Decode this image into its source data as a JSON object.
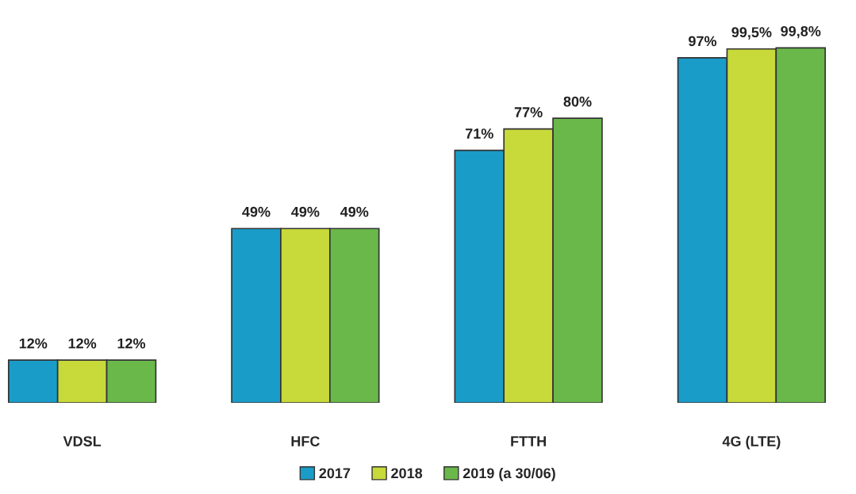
{
  "chart_data": {
    "type": "bar",
    "categories": [
      "VDSL",
      "HFC",
      "FTTH",
      "4G (LTE)"
    ],
    "series": [
      {
        "name": "2017",
        "color": "#1a9cc9",
        "values": [
          12,
          49,
          71,
          97
        ],
        "value_labels": [
          "12%",
          "49%",
          "71%",
          "97%"
        ]
      },
      {
        "name": "2018",
        "color": "#c8d93a",
        "values": [
          12,
          49,
          77,
          99.5
        ],
        "value_labels": [
          "12%",
          "49%",
          "77%",
          "99,5%"
        ]
      },
      {
        "name": "2019 (a 30/06)",
        "color": "#6ab84a",
        "values": [
          12,
          49,
          80,
          99.8
        ],
        "value_labels": [
          "12%",
          "49%",
          "80%",
          "99,8%"
        ]
      }
    ],
    "legend": "bottom",
    "grid": false,
    "tick_labels": "x"
  }
}
